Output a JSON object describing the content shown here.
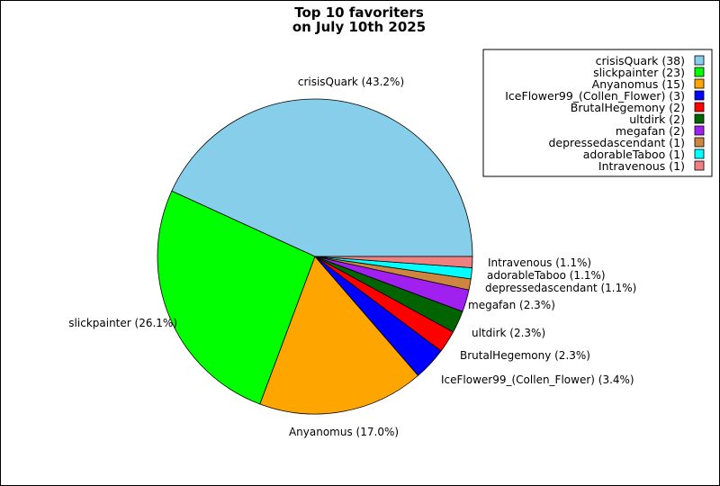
{
  "chart_data": {
    "type": "pie",
    "title_lines": [
      "Top 10 favoriters",
      "on July 10th 2025"
    ],
    "slices": [
      {
        "name": "crisisQuark",
        "value": 38,
        "percent_label": "crisisQuark (43.2%)",
        "legend_label": "crisisQuark (38)",
        "color": "#87ceeb"
      },
      {
        "name": "slickpainter",
        "value": 23,
        "percent_label": "slickpainter (26.1%)",
        "legend_label": "slickpainter (23)",
        "color": "#00ff00"
      },
      {
        "name": "Anyanomus",
        "value": 15,
        "percent_label": "Anyanomus (17.0%)",
        "legend_label": "Anyanomus (15)",
        "color": "#ffa500"
      },
      {
        "name": "IceFlower99_(Collen_Flower)",
        "value": 3,
        "percent_label": "IceFlower99_(Collen_Flower) (3.4%)",
        "legend_label": "IceFlower99_(Collen_Flower) (3)",
        "color": "#0000ff"
      },
      {
        "name": "BrutalHegemony",
        "value": 2,
        "percent_label": "BrutalHegemony (2.3%)",
        "legend_label": "BrutalHegemony (2)",
        "color": "#ff0000"
      },
      {
        "name": "ultdirk",
        "value": 2,
        "percent_label": "ultdirk (2.3%)",
        "legend_label": "ultdirk (2)",
        "color": "#006400"
      },
      {
        "name": "megafan",
        "value": 2,
        "percent_label": "megafan (2.3%)",
        "legend_label": "megafan (2)",
        "color": "#a020f0"
      },
      {
        "name": "depressedascendant",
        "value": 1,
        "percent_label": "depressedascendant (1.1%)",
        "legend_label": "depressedascendant (1)",
        "color": "#cd853f"
      },
      {
        "name": "adorableTaboo",
        "value": 1,
        "percent_label": "adorableTaboo (1.1%)",
        "legend_label": "adorableTaboo (1)",
        "color": "#00ffff"
      },
      {
        "name": "Intravenous",
        "value": 1,
        "percent_label": "Intravenous (1.1%)",
        "legend_label": "Intravenous (1)",
        "color": "#f08080"
      }
    ],
    "start_angle": "3 o'clock",
    "direction": "counterclockwise",
    "legend_placement": "top-right"
  }
}
